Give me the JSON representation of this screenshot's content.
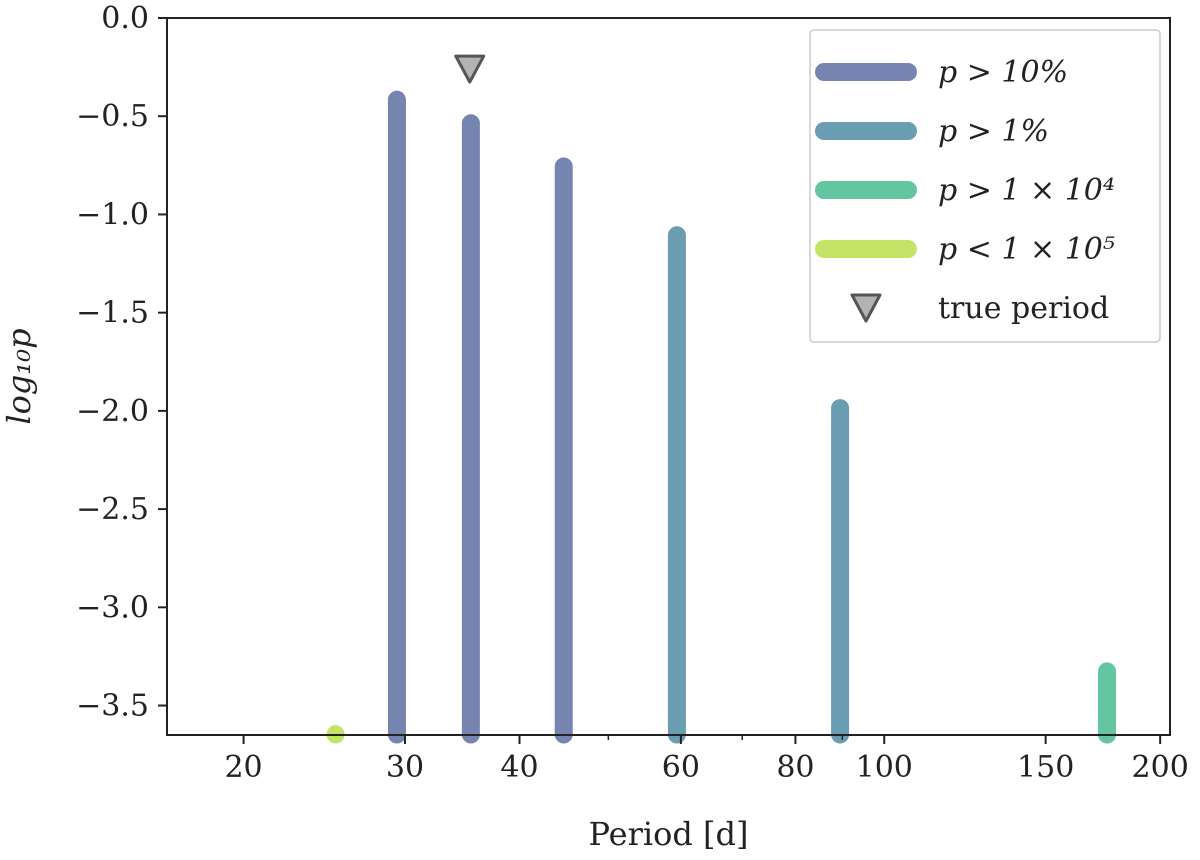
{
  "chart_data": {
    "type": "bar",
    "xlabel": "Period [d]",
    "ylabel": "log₁₀p",
    "xscale": "log",
    "xlim": [
      16.5,
      205
    ],
    "ylim": [
      -3.65,
      0.0
    ],
    "x_ticks": [
      20,
      30,
      40,
      60,
      80,
      100,
      150,
      200
    ],
    "y_ticks": [
      0.0,
      -0.5,
      -1.0,
      -1.5,
      -2.0,
      -2.5,
      -3.0,
      -3.5
    ],
    "y_tick_labels": [
      "0.0",
      "−0.5",
      "−1.0",
      "−1.5",
      "−2.0",
      "−2.5",
      "−3.0",
      "−3.5"
    ],
    "grid": false,
    "legend_position": "top-right",
    "legend": [
      {
        "label": "p > 10%",
        "color": "#7585b0",
        "kind": "line"
      },
      {
        "label": "p > 1%",
        "color": "#6a9db1",
        "kind": "line"
      },
      {
        "label": "p > 1 × 10⁴",
        "color": "#63c6a0",
        "kind": "line"
      },
      {
        "label": "p < 1 × 10⁵",
        "color": "#c4e467",
        "kind": "line"
      },
      {
        "label": "true period",
        "color": "#b3b3b3",
        "kind": "marker"
      }
    ],
    "bars": [
      {
        "period": 25.2,
        "log10p": -3.6,
        "group": "p < 1 × 10⁵",
        "color": "#c4e467"
      },
      {
        "period": 29.4,
        "log10p": -0.37,
        "group": "p > 10%",
        "color": "#7585b0"
      },
      {
        "period": 35.4,
        "log10p": -0.49,
        "group": "p > 10%",
        "color": "#7585b0"
      },
      {
        "period": 44.7,
        "log10p": -0.71,
        "group": "p > 10%",
        "color": "#7585b0"
      },
      {
        "period": 59.4,
        "log10p": -1.06,
        "group": "p > 1%",
        "color": "#6a9db1"
      },
      {
        "period": 89.5,
        "log10p": -1.94,
        "group": "p > 1%",
        "color": "#6a9db1"
      },
      {
        "period": 175,
        "log10p": -3.28,
        "group": "p > 1 × 10⁴",
        "color": "#63c6a0"
      }
    ],
    "true_period": {
      "period": 35.3,
      "log10p": -0.26,
      "color": "#b3b3b3"
    }
  }
}
